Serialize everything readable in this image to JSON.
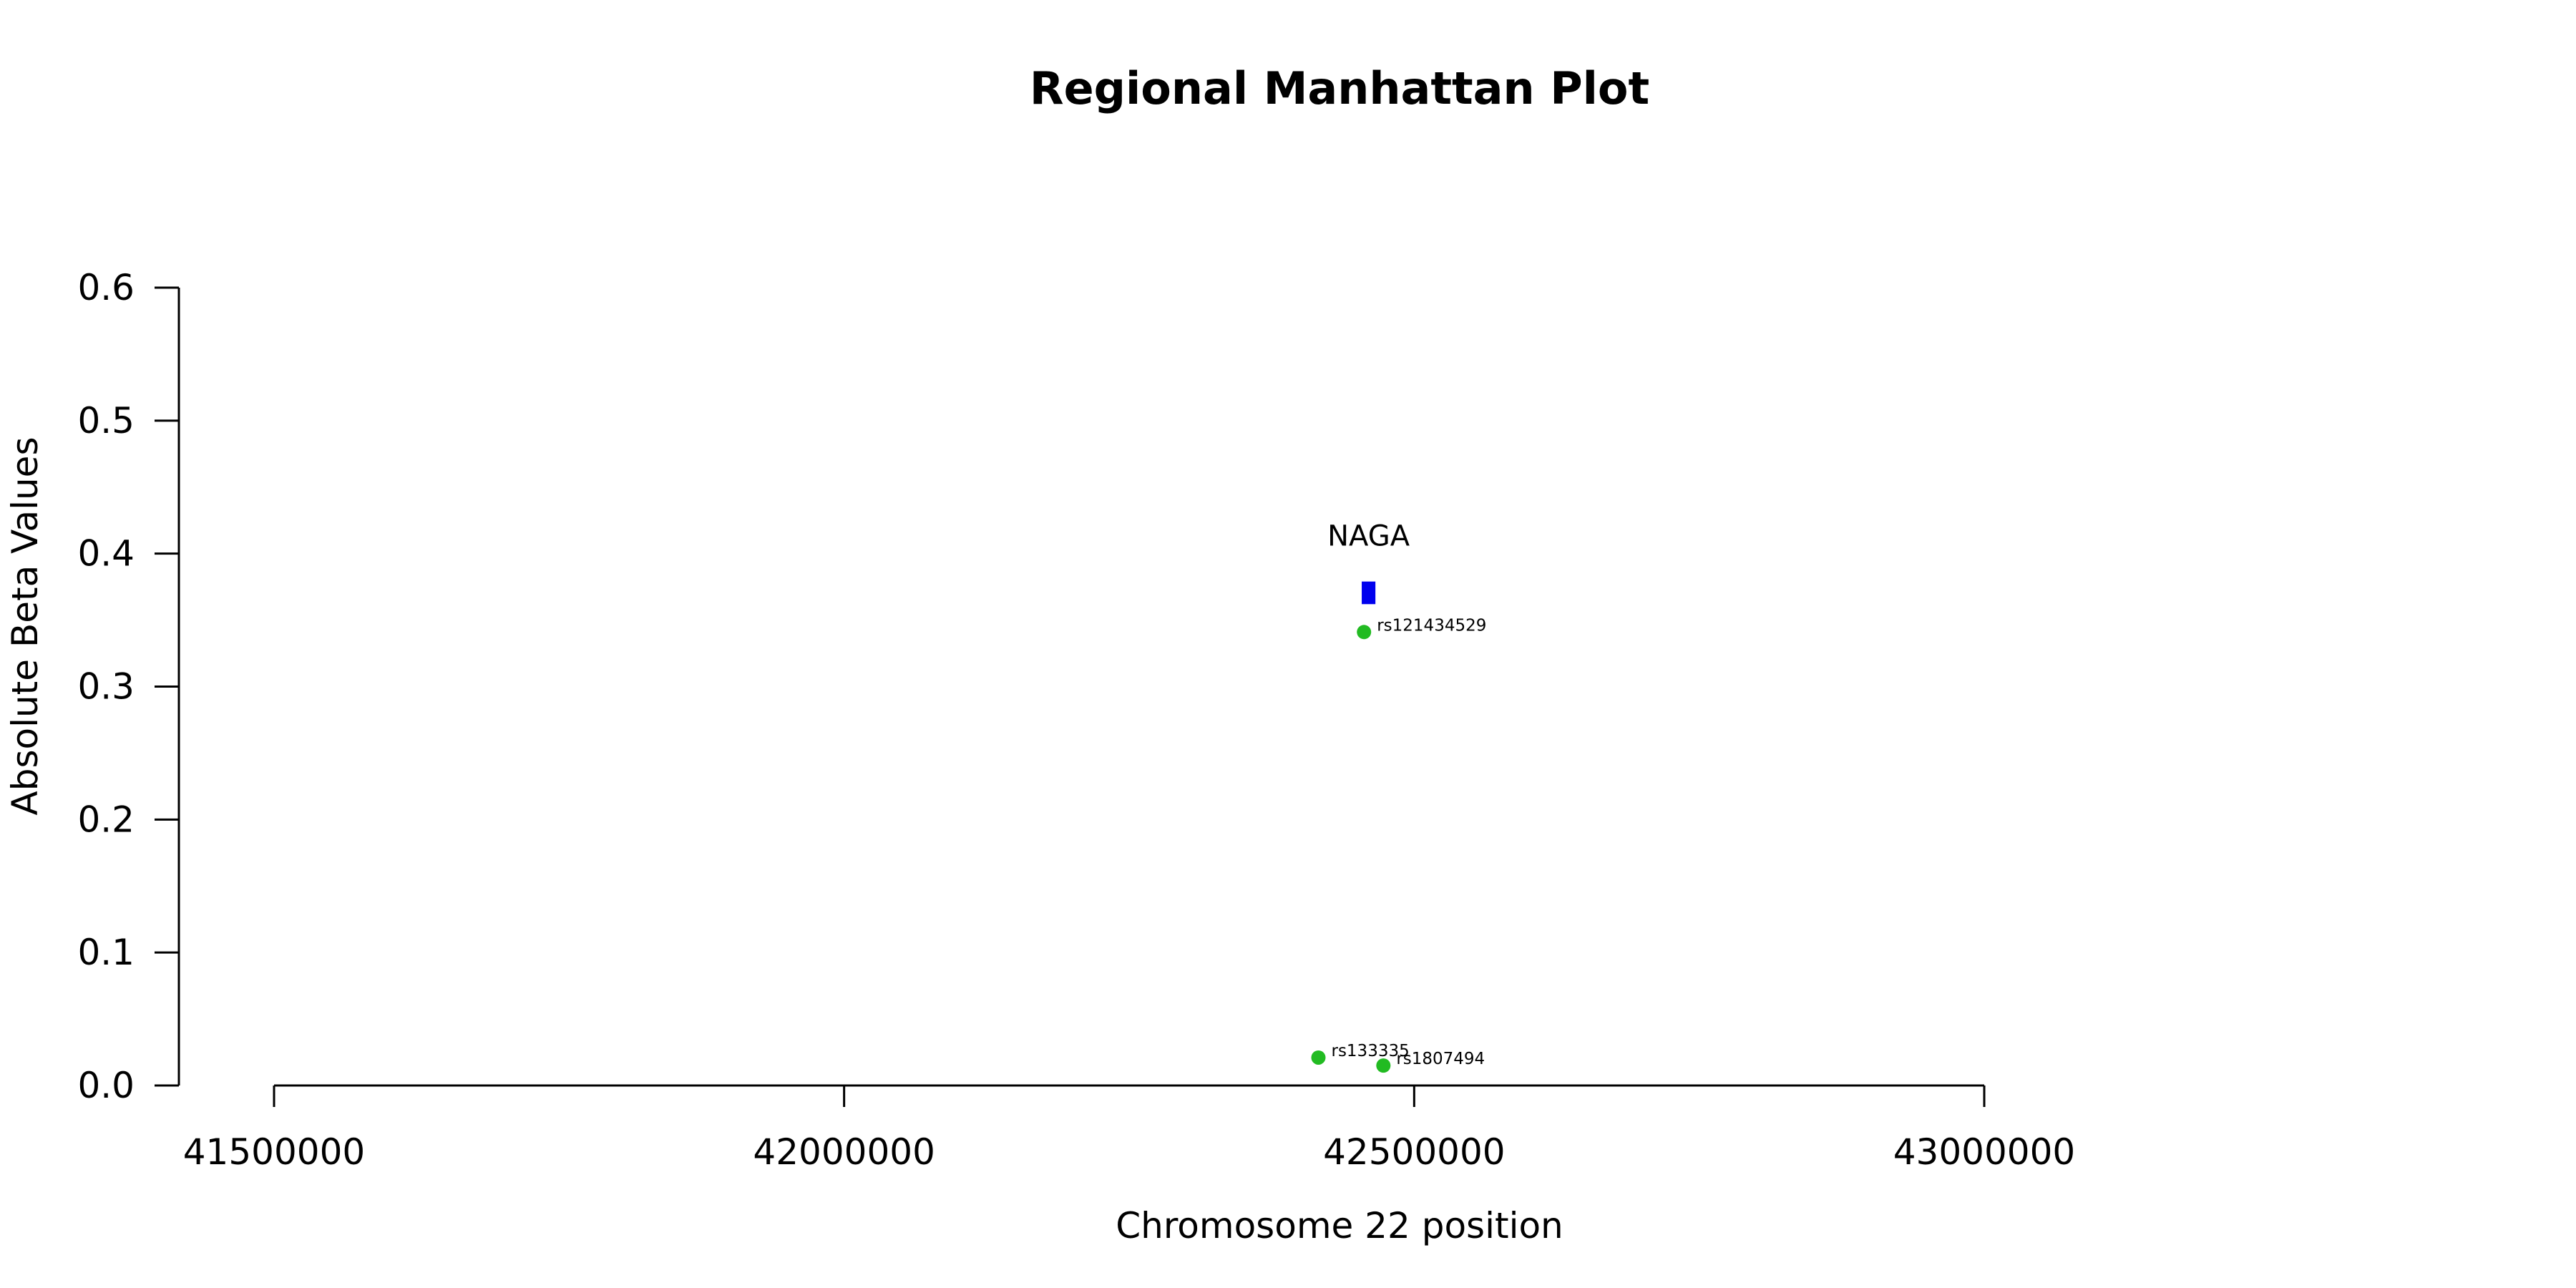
{
  "chart_data": {
    "type": "scatter",
    "title": "Regional Manhattan Plot",
    "xlabel": "Chromosome 22 position",
    "ylabel": "Absolute Beta Values",
    "xlim": [
      41500000,
      43000000
    ],
    "ylim": [
      0,
      0.6
    ],
    "x_ticks": [
      41500000,
      42000000,
      42500000,
      43000000
    ],
    "x_tick_labels": [
      "41500000",
      "42000000",
      "42500000",
      "43000000"
    ],
    "y_ticks": [
      0,
      0.1,
      0.2,
      0.3,
      0.4,
      0.5,
      0.6
    ],
    "y_tick_labels": [
      "0.0",
      "0.1",
      "0.2",
      "0.3",
      "0.4",
      "0.5",
      "0.6"
    ],
    "points": [
      {
        "label": "rs121434529",
        "x": 42456000,
        "y": 0.341
      },
      {
        "label": "rs133335",
        "x": 42416000,
        "y": 0.021
      },
      {
        "label": "rs1807494",
        "x": 42473000,
        "y": 0.015
      }
    ],
    "gene": {
      "name": "NAGA",
      "start": 42454000,
      "end": 42466000,
      "y_low": 0.362,
      "y_high": 0.379
    },
    "colors": {
      "points": "#22bb22",
      "gene": "#0000ee"
    },
    "grid": false,
    "legend": "none"
  }
}
